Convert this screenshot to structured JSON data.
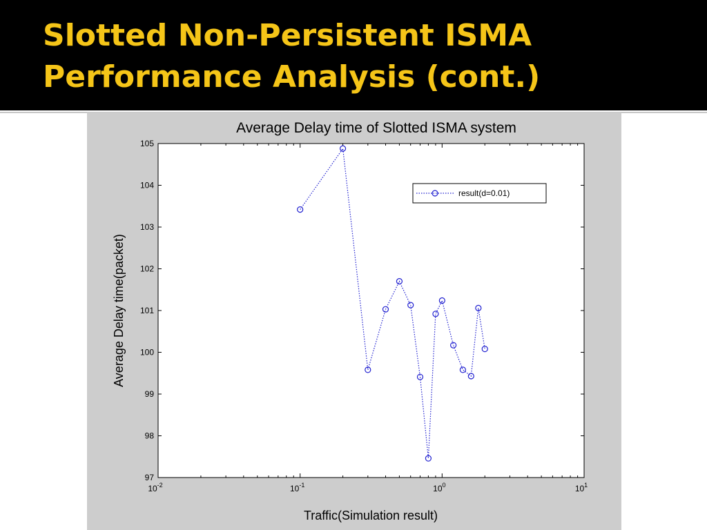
{
  "slide": {
    "title_line1": "Slotted Non-Persistent ISMA",
    "title_line2": "Performance Analysis (cont.)",
    "title_color": "#f5c518",
    "header_background": "#000000"
  },
  "chart_data": {
    "type": "line",
    "title": "Average Delay time of Slotted ISMA system",
    "xlabel": "Traffic(Simulation result)",
    "ylabel": "Average Delay time(packet)",
    "x_scale": "log",
    "xlim": [
      0.01,
      10
    ],
    "ylim": [
      97,
      105
    ],
    "x_ticks": [
      {
        "value": 0.01,
        "base": "10",
        "exp": "-2"
      },
      {
        "value": 0.1,
        "base": "10",
        "exp": "-1"
      },
      {
        "value": 1,
        "base": "10",
        "exp": "0"
      },
      {
        "value": 10,
        "base": "10",
        "exp": "1"
      }
    ],
    "y_ticks": [
      97,
      98,
      99,
      100,
      101,
      102,
      103,
      104,
      105
    ],
    "grid": false,
    "legend_position": "top-right",
    "series": [
      {
        "name": "result(d=0.01)",
        "color": "#1f1fd0",
        "line_style": "dotted",
        "marker": "circle",
        "x": [
          0.1,
          0.2,
          0.3,
          0.4,
          0.5,
          0.6,
          0.7,
          0.8,
          0.9,
          1.0,
          1.2,
          1.4,
          1.6,
          1.8,
          2.0
        ],
        "y": [
          103.42,
          104.88,
          99.58,
          101.03,
          101.7,
          101.13,
          99.41,
          97.46,
          100.92,
          101.24,
          100.17,
          99.58,
          99.43,
          101.06,
          100.08
        ]
      }
    ]
  }
}
